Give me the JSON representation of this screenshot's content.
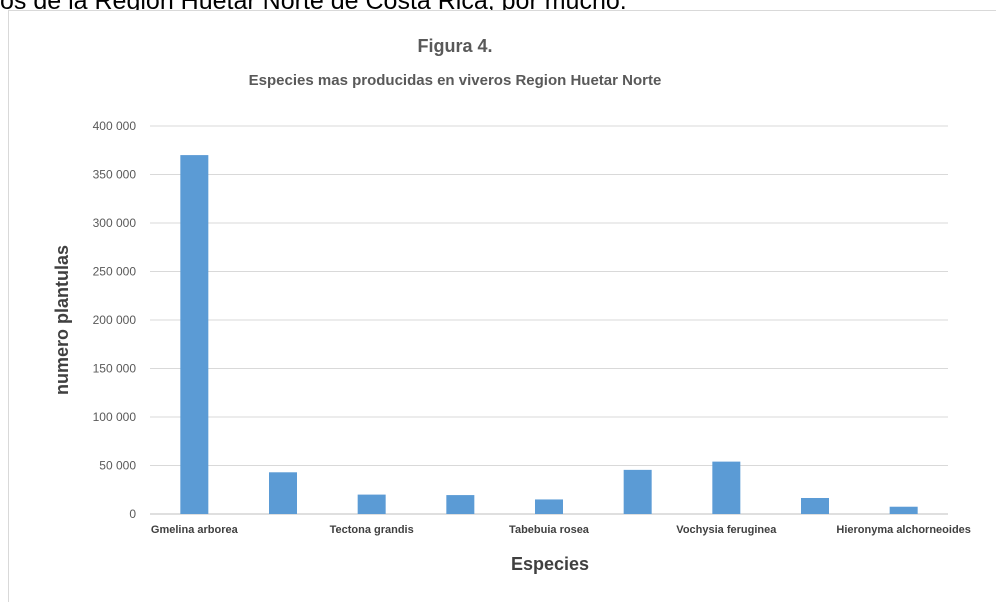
{
  "document": {
    "text_fragment": "os de la Region Huetar Norte de Costa Rica,  por mucho."
  },
  "chart_data": {
    "type": "bar",
    "title": "Figura 4.",
    "subtitle": "Especies mas producidas en viveros Region Huetar Norte",
    "xlabel": "Especies",
    "ylabel": "numero plantulas",
    "ylim": [
      0,
      400000
    ],
    "yticks": [
      0,
      50000,
      100000,
      150000,
      200000,
      250000,
      300000,
      350000,
      400000
    ],
    "ytick_labels": [
      "0",
      "50 000",
      "100 000",
      "150 000",
      "200 000",
      "250 000",
      "300 000",
      "350 000",
      "400 000"
    ],
    "categories": [
      "Gmelina arborea",
      "",
      "Tectona grandis",
      "",
      "Tabebuia rosea",
      "",
      "Vochysia feruginea",
      "",
      "Hieronyma alchorneoides"
    ],
    "values": [
      370000,
      43000,
      20000,
      19500,
      15000,
      45500,
      54000,
      16500,
      7500
    ],
    "grid": true,
    "legend": "none",
    "bar_color": "#5b9bd5"
  }
}
